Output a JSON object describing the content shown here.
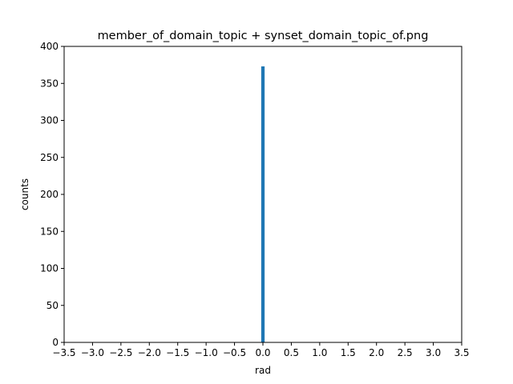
{
  "chart_data": {
    "type": "bar",
    "title": "member_of_domain_topic + synset_domain_topic_of.png",
    "xlabel": "rad",
    "ylabel": "counts",
    "xlim": [
      -3.5,
      3.5
    ],
    "ylim": [
      0,
      400
    ],
    "x_ticks": [
      "−3.5",
      "−3.0",
      "−2.5",
      "−2.0",
      "−1.5",
      "−1.0",
      "−0.5",
      "0.0",
      "0.5",
      "1.0",
      "1.5",
      "2.0",
      "2.5",
      "3.0",
      "3.5"
    ],
    "x_tick_values": [
      -3.5,
      -3.0,
      -2.5,
      -2.0,
      -1.5,
      -1.0,
      -0.5,
      0.0,
      0.5,
      1.0,
      1.5,
      2.0,
      2.5,
      3.0,
      3.5
    ],
    "y_ticks": [
      "0",
      "50",
      "100",
      "150",
      "200",
      "250",
      "300",
      "350",
      "400"
    ],
    "y_tick_values": [
      0,
      50,
      100,
      150,
      200,
      250,
      300,
      350,
      400
    ],
    "bars": [
      {
        "x_start": -0.03,
        "x_end": 0.03,
        "value": 373
      }
    ],
    "bar_color": "#1f77b4",
    "grid": false,
    "legend": "none"
  }
}
